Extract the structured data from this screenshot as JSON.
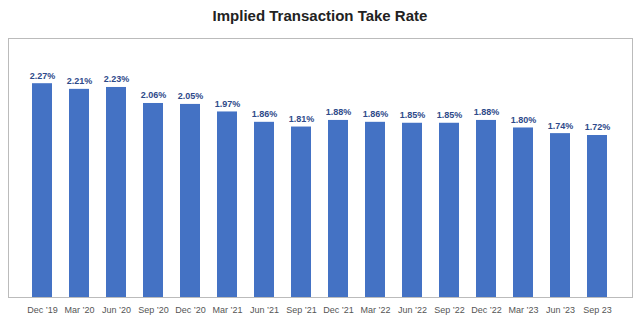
{
  "chart_data": {
    "type": "bar",
    "title": "Implied Transaction Take Rate",
    "categories": [
      "Dec ’19",
      "Mar ’20",
      "Jun ’20",
      "Sep ’20",
      "Dec ’20",
      "Mar ’21",
      "Jun ’21",
      "Sep ’21",
      "Dec ’21",
      "Mar ’22",
      "Jun ’22",
      "Sep ’22",
      "Dec ’22",
      "Mar ’23",
      "Jun ’23",
      "Sep 23"
    ],
    "values": [
      2.27,
      2.21,
      2.23,
      2.06,
      2.05,
      1.97,
      1.86,
      1.81,
      1.88,
      1.86,
      1.85,
      1.85,
      1.88,
      1.8,
      1.74,
      1.72
    ],
    "value_labels": [
      "2.27%",
      "2.21%",
      "2.23%",
      "2.06%",
      "2.05%",
      "1.97%",
      "1.86%",
      "1.81%",
      "1.88%",
      "1.86%",
      "1.85%",
      "1.85%",
      "1.88%",
      "1.80%",
      "1.74%",
      "1.72%"
    ],
    "color": "#4472C4",
    "ylim": [
      0,
      2.75
    ],
    "data_labels": true,
    "tick_labels": "x",
    "grid": false
  }
}
